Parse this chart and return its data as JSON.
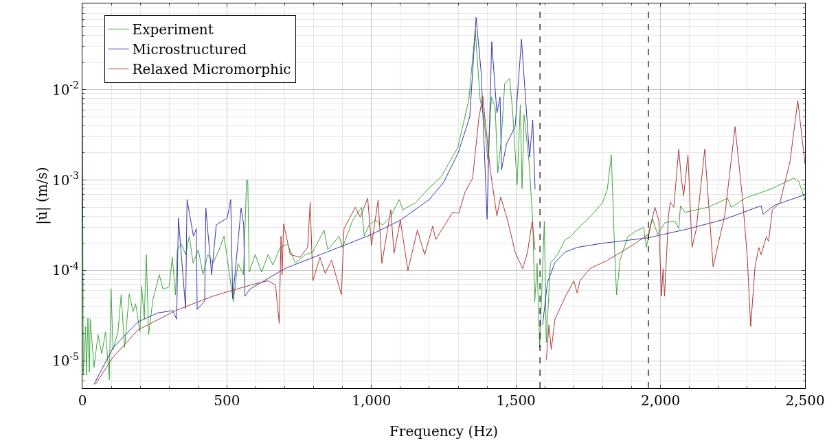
{
  "chart_data": {
    "type": "line",
    "xlabel": "Frequency (Hz)",
    "ylabel": "|u̇| (m/s)",
    "xlim": [
      0,
      2500
    ],
    "xticks": [
      0,
      500,
      {
        "value": 1000,
        "label": "1,000"
      },
      {
        "value": 1500,
        "label": "1,500"
      },
      {
        "value": 2000,
        "label": "2,000"
      },
      {
        "value": 2500,
        "label": "2,500"
      }
    ],
    "ylim": [
      5e-06,
      0.09
    ],
    "yticks": [
      {
        "value": 1e-05,
        "label": "10$^{-5}$"
      },
      {
        "value": 0.0001,
        "label": "10$^{-4}$"
      },
      {
        "value": 0.001,
        "label": "10$^{-3}$"
      },
      {
        "value": 0.01,
        "label": "10$^{-2}$"
      }
    ],
    "log": "y",
    "grid": true,
    "legend": "top left",
    "marker": "none",
    "line_style": "solid",
    "ref_lines": [
      {
        "axis": "x",
        "value": 1583,
        "color": "#000000",
        "line_style": "dashed"
      },
      {
        "axis": "x",
        "value": 1958,
        "color": "#000000",
        "line_style": "dashed"
      }
    ],
    "series": [
      {
        "name": "Experiment",
        "color": "#3aa83a",
        "x": [
          0,
          3,
          11,
          14,
          19,
          24,
          27,
          40,
          54,
          67,
          80,
          93,
          99,
          106,
          123,
          134,
          146,
          162,
          175,
          184,
          199,
          205,
          214,
          221,
          229,
          244,
          266,
          279,
          300,
          311,
          322,
          328,
          343,
          357,
          370,
          383,
          401,
          417,
          434,
          452,
          473,
          490,
          507,
          522,
          538,
          557,
          568,
          572,
          577,
          598,
          620,
          642,
          659,
          684,
          710,
          737,
          771,
          797,
          836,
          849,
          888,
          900,
          935,
          966,
          975,
          992,
          1013,
          1039,
          1065,
          1096,
          1109,
          1151,
          1195,
          1242,
          1299,
          1337,
          1359,
          1376,
          1389,
          1402,
          1415,
          1428,
          1437,
          1449,
          1461,
          1478,
          1488,
          1504,
          1515,
          1521,
          1528,
          1545,
          1558,
          1565,
          1573,
          1582,
          1598,
          1605,
          1619,
          1644,
          1670,
          1687,
          1722,
          1756,
          1799,
          1816,
          1830,
          1841,
          1848,
          1860,
          1886,
          1912,
          1942,
          1951,
          1972,
          1990,
          2016,
          2050,
          2063,
          2069,
          2085,
          2163,
          2232,
          2245,
          2292,
          2379,
          2461,
          2478,
          2500
        ],
        "values": [
          0.0085,
          7e-06,
          2.4e-05,
          7e-06,
          3e-05,
          7.5e-06,
          2.9e-05,
          8.5e-06,
          1.95e-05,
          1.2e-05,
          2.1e-05,
          6.2e-06,
          6.3e-05,
          1.33e-05,
          2.1e-05,
          5.4e-05,
          1.4e-05,
          5.5e-05,
          3.5e-05,
          4.3e-05,
          2.1e-05,
          6.7e-05,
          2.9e-05,
          0.00015,
          1.95e-05,
          4.8e-05,
          9e-05,
          6.2e-05,
          6.6e-05,
          0.00014,
          5.4e-05,
          0.00017,
          0.000195,
          0.00015,
          0.00024,
          0.00012,
          0.00017,
          9e-05,
          0.00015,
          0.00012,
          0.00017,
          0.00024,
          0.0001,
          4.5e-05,
          0.00012,
          9e-05,
          0.001,
          0.001,
          9.6e-05,
          0.00015,
          9.6e-05,
          0.00015,
          0.000115,
          0.00018,
          0.000195,
          0.00012,
          0.00015,
          0.00016,
          0.00028,
          0.00017,
          0.00024,
          0.00018,
          0.00036,
          0.0005,
          0.00024,
          0.00032,
          0.00036,
          0.00032,
          0.00039,
          0.00061,
          0.00047,
          0.00056,
          0.00079,
          0.0011,
          0.0023,
          0.0078,
          0.046,
          0.0078,
          0.005,
          0.0017,
          0.0083,
          0.0064,
          0.0012,
          0.0028,
          0.0117,
          0.0133,
          0.006,
          0.00089,
          0.0068,
          0.00081,
          0.0053,
          0.0016,
          0.00035,
          4.5e-05,
          0.00012,
          1.4e-05,
          0.00035,
          1.6e-05,
          0.00012,
          0.00015,
          0.00022,
          0.000235,
          0.00031,
          0.00039,
          0.00056,
          0.00079,
          0.0019,
          0.00017,
          5.4e-05,
          0.00013,
          0.000235,
          0.00027,
          0.0003,
          0.00018,
          0.00038,
          0.00025,
          0.00034,
          0.00035,
          0.00029,
          0.00052,
          0.00044,
          0.0005,
          0.00063,
          0.0005,
          0.00063,
          0.00079,
          0.00105,
          0.00097,
          0.00061
        ]
      },
      {
        "name": "Microstructured",
        "color": "#3535b0",
        "x": [
          40,
          106,
          192,
          261,
          313,
          326,
          332,
          357,
          362,
          384,
          394,
          397,
          423,
          427,
          447,
          463,
          501,
          513,
          520,
          549,
          558,
          562,
          579,
          700,
          1000,
          1100,
          1200,
          1250,
          1300,
          1340,
          1362,
          1380,
          1400,
          1416,
          1434,
          1445,
          1450,
          1467,
          1497,
          1519,
          1547,
          1558,
          1566,
          1573,
          1585,
          1592,
          1609,
          1635,
          1670,
          1711,
          1799,
          1957,
          2098,
          2223,
          2348,
          2355,
          2396,
          2500
        ],
        "values": [
          5.5e-06,
          1.4e-05,
          2.7e-05,
          3.4e-05,
          3.6e-05,
          2.9e-05,
          0.00038,
          3.8e-05,
          0.00061,
          0.00024,
          0.00029,
          3.7e-05,
          4.6e-05,
          0.00049,
          9e-05,
          0.00032,
          0.00038,
          0.00061,
          4.9e-05,
          0.00049,
          0.00032,
          5.2e-05,
          6.2e-05,
          0.000105,
          0.00025,
          0.00036,
          0.00061,
          0.00095,
          0.002,
          0.005,
          0.063,
          0.015,
          0.00037,
          0.034,
          0.0055,
          0.0083,
          0.0013,
          0.0025,
          0.0039,
          0.036,
          0.0018,
          0.0046,
          0.00079,
          null,
          null,
          2.5e-05,
          7.4e-05,
          0.000123,
          0.00016,
          0.00018,
          0.0002,
          0.00023,
          0.00029,
          0.00037,
          0.00052,
          0.00042,
          0.00053,
          0.00069
        ]
      },
      {
        "name": "Relaxed Micromorphic",
        "color": "#b03535",
        "x": [
          45,
          106,
          192,
          322,
          451,
          581,
          642,
          668,
          681,
          687,
          691,
          696,
          719,
          753,
          779,
          788,
          797,
          822,
          840,
          862,
          896,
          905,
          944,
          961,
          987,
          1000,
          1023,
          1036,
          1067,
          1078,
          1100,
          1126,
          1159,
          1184,
          1212,
          1222,
          1281,
          1302,
          1324,
          1350,
          1371,
          1385,
          1411,
          1434,
          1447,
          1471,
          1497,
          1523,
          1540,
          1556,
          1566,
          1573,
          1597,
          1605,
          1614,
          1622,
          1635,
          1670,
          1700,
          1712,
          1721,
          1756,
          1817,
          1903,
          1957,
          1981,
          1994,
          2003,
          2009,
          2014,
          2028,
          2034,
          2046,
          2063,
          2072,
          2080,
          2095,
          2109,
          2124,
          2153,
          2182,
          2223,
          2258,
          2284,
          2300,
          2312,
          2327,
          2340,
          2348,
          2366,
          2374,
          2387,
          2413,
          2448,
          2475,
          2500
        ],
        "values": [
          5.5e-06,
          1.1e-05,
          2.2e-05,
          3.6e-05,
          5.2e-05,
          6.9e-05,
          7.7e-05,
          6.9e-05,
          2.6e-05,
          0.00024,
          9e-05,
          0.00033,
          0.00015,
          0.00014,
          0.00018,
          0.00057,
          7.7e-05,
          0.00014,
          9.3e-05,
          0.00013,
          5.4e-05,
          0.00029,
          0.0005,
          0.00039,
          0.00063,
          0.00019,
          0.0006,
          0.00012,
          0.00047,
          0.000155,
          0.00036,
          0.0001,
          0.00028,
          0.00015,
          0.00031,
          0.00022,
          0.00044,
          0.00043,
          0.00074,
          0.00105,
          0.0047,
          0.0085,
          0.0013,
          0.0004,
          0.00065,
          0.00036,
          0.00016,
          0.000105,
          0.00016,
          0.00035,
          0.00017,
          null,
          null,
          1.03e-05,
          2.5e-05,
          1.33e-05,
          2.9e-05,
          5.1e-05,
          7.7e-05,
          5.6e-05,
          7.7e-05,
          0.000105,
          0.00013,
          0.00019,
          0.00025,
          0.0005,
          0.00036,
          5.2e-05,
          0.000105,
          5.2e-05,
          0.00042,
          0.00057,
          0.0005,
          0.0022,
          0.00105,
          0.00067,
          0.0019,
          0.00018,
          0.00029,
          0.0022,
          0.00011,
          0.00042,
          0.0039,
          0.00061,
          0.000145,
          2.4e-05,
          0.00011,
          0.00018,
          0.00015,
          0.000235,
          0.00021,
          0.00047,
          0.00056,
          0.0016,
          0.0076,
          0.0015
        ]
      }
    ]
  }
}
